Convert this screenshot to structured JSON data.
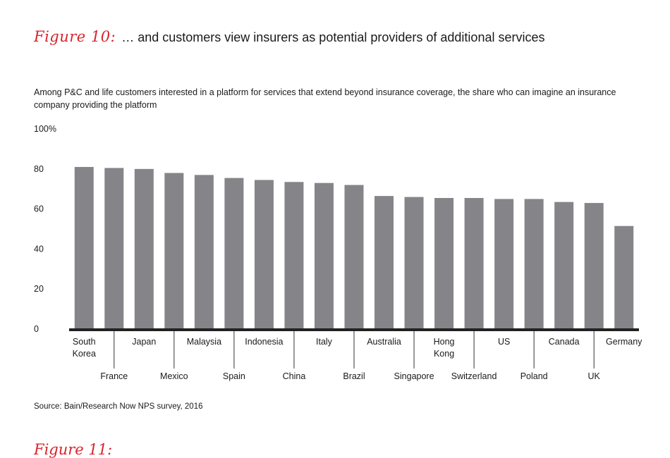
{
  "header": {
    "figure_label": "Figure 10:",
    "title": "… and customers view insurers as potential providers of additional services"
  },
  "subtitle": "Among P&C and life customers interested in a platform for services that extend beyond insurance coverage, the share who can imagine an insurance company providing the platform",
  "source": "Source: Bain/Research Now NPS survey, 2016",
  "next_figure_label": "Figure 11:",
  "chart_data": {
    "type": "bar",
    "title": "",
    "xlabel": "",
    "ylabel": "",
    "ylim": [
      0,
      100
    ],
    "y_ticks": [
      "0",
      "20",
      "40",
      "60",
      "80",
      "100%"
    ],
    "y_tick_values": [
      0,
      20,
      40,
      60,
      80,
      100
    ],
    "grid": false,
    "categories": [
      "South Korea",
      "France",
      "Japan",
      "Mexico",
      "Malaysia",
      "Spain",
      "Indonesia",
      "China",
      "Italy",
      "Brazil",
      "Australia",
      "Singapore",
      "Hong Kong",
      "Switzerland",
      "US",
      "Poland",
      "Canada",
      "UK",
      "Germany"
    ],
    "category_label_lines": [
      [
        "South",
        "Korea"
      ],
      [
        "France"
      ],
      [
        "Japan"
      ],
      [
        "Mexico"
      ],
      [
        "Malaysia"
      ],
      [
        "Spain"
      ],
      [
        "Indonesia"
      ],
      [
        "China"
      ],
      [
        "Italy"
      ],
      [
        "Brazil"
      ],
      [
        "Australia"
      ],
      [
        "Singapore"
      ],
      [
        "Hong",
        "Kong"
      ],
      [
        "Switzerland"
      ],
      [
        "US"
      ],
      [
        "Poland"
      ],
      [
        "Canada"
      ],
      [
        "UK"
      ],
      [
        "Germany"
      ]
    ],
    "values": [
      81,
      80.5,
      80,
      78,
      77,
      75.5,
      74.5,
      73.5,
      73,
      72,
      66.5,
      66,
      65.5,
      65.5,
      65,
      65,
      63.5,
      63,
      51.5
    ],
    "bar_color": "#858589",
    "axis_color": "#222222"
  }
}
